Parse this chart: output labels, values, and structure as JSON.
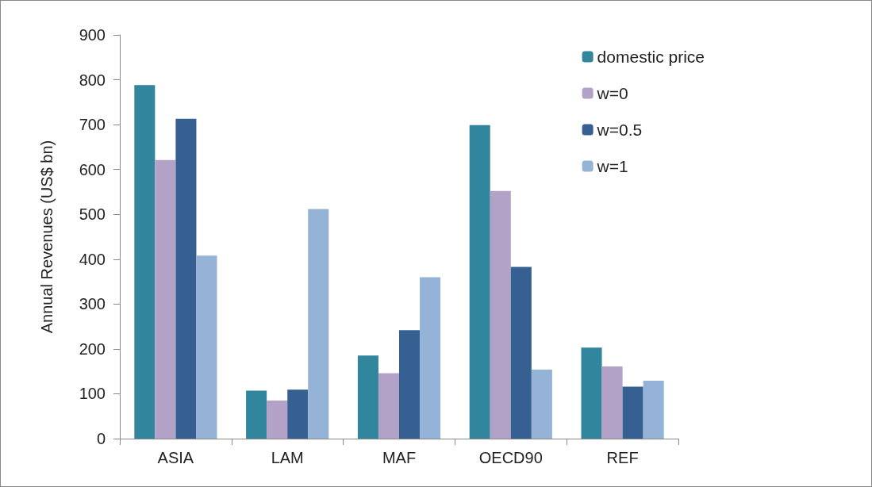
{
  "chart_data": {
    "type": "bar",
    "ylabel": "Annual Revenues (US$ bn)",
    "categories": [
      "ASIA",
      "LAM",
      "MAF",
      "OECD90",
      "REF"
    ],
    "series": [
      {
        "name": "domestic price",
        "color": "#31859c",
        "values": [
          788,
          107,
          185,
          699,
          203
        ]
      },
      {
        "name": "w=0",
        "color": "#b3a2c7",
        "values": [
          621,
          85,
          146,
          552,
          161
        ]
      },
      {
        "name": "w=0.5",
        "color": "#376092",
        "values": [
          713,
          109,
          242,
          383,
          116
        ]
      },
      {
        "name": "w=1",
        "color": "#95b3d7",
        "values": [
          408,
          512,
          360,
          154,
          129
        ]
      }
    ],
    "ylim": [
      0,
      900
    ],
    "yticks": [
      0,
      100,
      200,
      300,
      400,
      500,
      600,
      700,
      800,
      900
    ],
    "grid": false,
    "legend": "top right"
  }
}
